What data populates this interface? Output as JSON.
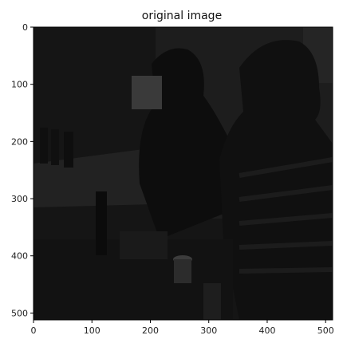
{
  "figure": {
    "title": "original image",
    "image_description_colors": {
      "background": "#151515",
      "frame": "#000000"
    },
    "x_axis": {
      "ticks": [
        {
          "value": 0,
          "label": "0"
        },
        {
          "value": 100,
          "label": "100"
        },
        {
          "value": 200,
          "label": "200"
        },
        {
          "value": 300,
          "label": "300"
        },
        {
          "value": 400,
          "label": "400"
        },
        {
          "value": 500,
          "label": "500"
        }
      ],
      "range": [
        0,
        512
      ]
    },
    "y_axis": {
      "ticks": [
        {
          "value": 0,
          "label": "0"
        },
        {
          "value": 100,
          "label": "100"
        },
        {
          "value": 200,
          "label": "200"
        },
        {
          "value": 300,
          "label": "300"
        },
        {
          "value": 400,
          "label": "400"
        },
        {
          "value": 500,
          "label": "500"
        }
      ],
      "range": [
        0,
        512
      ]
    }
  }
}
